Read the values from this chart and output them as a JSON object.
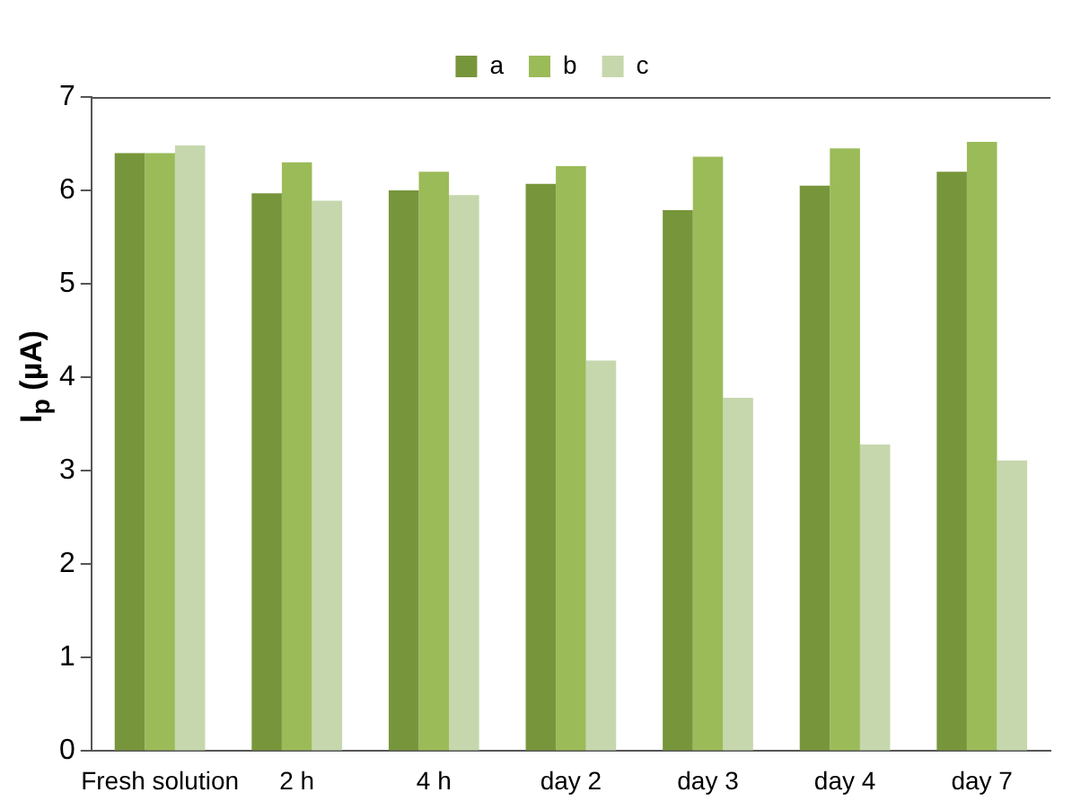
{
  "chart_data": {
    "type": "bar",
    "ylabel": "I$_{p}$ (µA)",
    "categories": [
      "Fresh solution",
      "2 h",
      "4 h",
      "day 2",
      "day 3",
      "day 4",
      "day 7"
    ],
    "series": [
      {
        "name": "a",
        "color": "#77963b",
        "values": [
          6.4,
          5.97,
          6.0,
          6.07,
          5.79,
          6.05,
          6.2
        ]
      },
      {
        "name": "b",
        "color": "#9bbb59",
        "values": [
          6.4,
          6.3,
          6.2,
          6.26,
          6.36,
          6.45,
          6.52
        ]
      },
      {
        "name": "c",
        "color": "#c6d7ad",
        "values": [
          6.48,
          5.89,
          5.95,
          4.18,
          3.78,
          3.28,
          3.11
        ]
      }
    ],
    "ylim": [
      0,
      7
    ],
    "yticks": [
      0,
      1,
      2,
      3,
      4,
      5,
      6,
      7
    ],
    "grid": false,
    "legend": "top"
  }
}
